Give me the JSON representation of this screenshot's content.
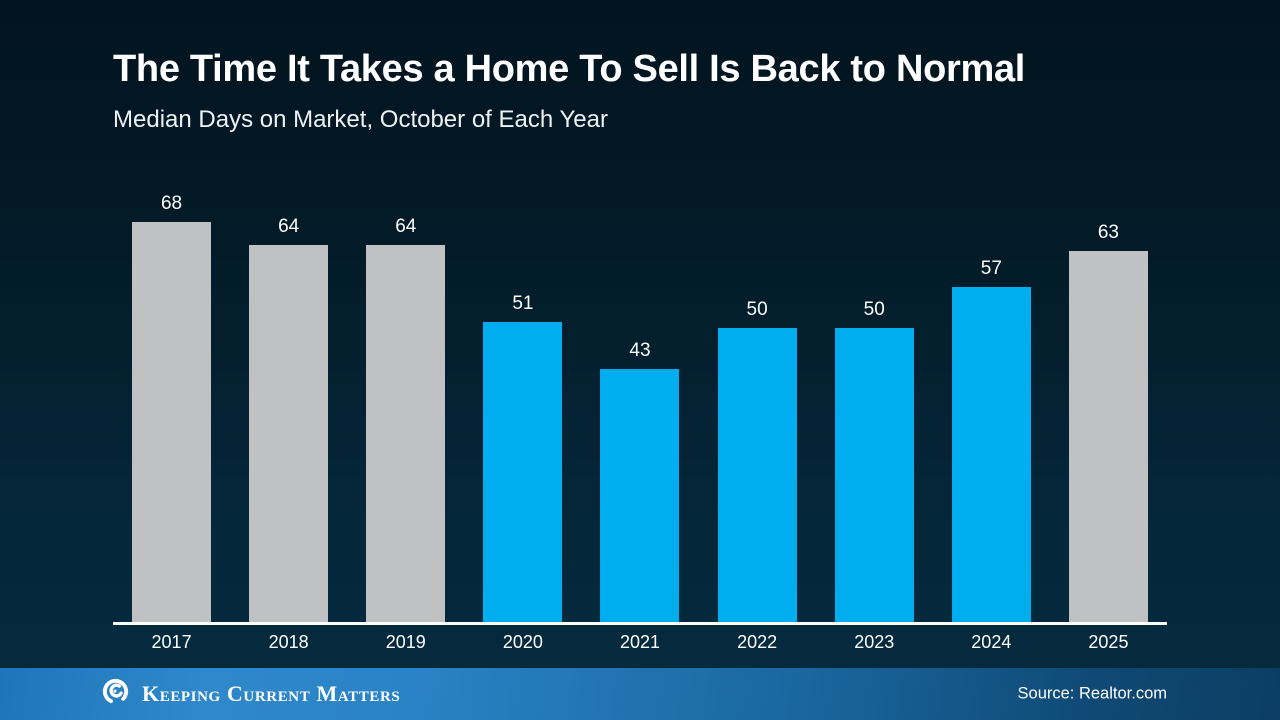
{
  "slide": {
    "title": "The Time It Takes a Home To Sell Is Back to Normal",
    "subtitle": "Median Days on Market, October of Each Year",
    "source": "Source: Realtor.com",
    "brand": "Keeping Current Matters"
  },
  "colors": {
    "background_top": "#021420",
    "background_bottom": "#052b40",
    "bar_gray": "#bfc1c3",
    "bar_blue": "#00aeef",
    "axis": "#ffffff",
    "footer_blue": "#2f88ca"
  },
  "chart_data": {
    "type": "bar",
    "title": "The Time It Takes a Home To Sell Is Back to Normal",
    "subtitle": "Median Days on Market, October of Each Year",
    "categories": [
      "2017",
      "2018",
      "2019",
      "2020",
      "2021",
      "2022",
      "2023",
      "2024",
      "2025"
    ],
    "values": [
      68,
      64,
      64,
      51,
      43,
      50,
      50,
      57,
      63
    ],
    "bar_colors": [
      "#bfc1c3",
      "#bfc1c3",
      "#bfc1c3",
      "#00aeef",
      "#00aeef",
      "#00aeef",
      "#00aeef",
      "#00aeef",
      "#bfc1c3"
    ],
    "xlabel": "",
    "ylabel": "Median Days on Market",
    "ylim": [
      0,
      72
    ],
    "grid": false,
    "legend": false,
    "data_labels": true,
    "source": "Source: Realtor.com"
  }
}
